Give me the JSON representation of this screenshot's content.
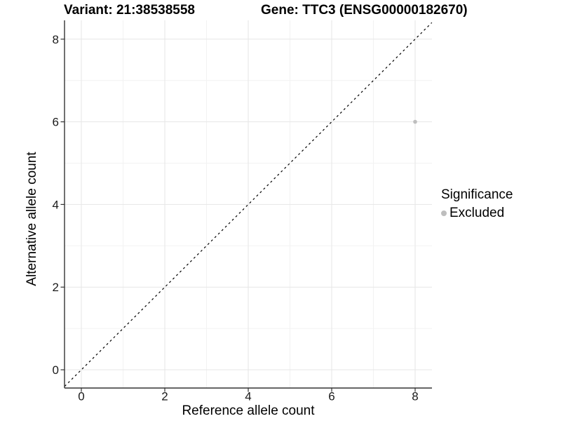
{
  "figure": {
    "title_variant": "Variant: 21:38538558",
    "title_gene": "Gene: TTC3 (ENSG00000182670)"
  },
  "chart_data": {
    "type": "scatter",
    "title": "Variant: 21:38538558 / Gene: TTC3 (ENSG00000182670)",
    "xlabel": "Reference allele count",
    "ylabel": "Alternative allele count",
    "xlim": [
      -0.4,
      8.4
    ],
    "ylim": [
      -0.44,
      8.45
    ],
    "x_ticks": [
      0,
      2,
      4,
      6,
      8
    ],
    "y_ticks": [
      0,
      2,
      4,
      6,
      8
    ],
    "x_minor_ticks": [
      1,
      3,
      5,
      7
    ],
    "y_minor_ticks": [
      1,
      3,
      5,
      7
    ],
    "grid": true,
    "identity_line": {
      "style": "dashed",
      "equation": "y = x",
      "color": "#000000"
    },
    "points": [
      {
        "x": 8,
        "y": 6,
        "significance": "Excluded"
      }
    ],
    "legend": {
      "title": "Significance",
      "position": "right",
      "entries": [
        {
          "label": "Excluded",
          "color": "#bebebe"
        }
      ]
    },
    "colors": {
      "point": "#bebebe",
      "major_grid": "#e6e6e6",
      "minor_grid": "#f2f2f2",
      "axis_line": "#333333",
      "tick_mark": "#333333",
      "tick_label": "#1a1a1a"
    }
  }
}
